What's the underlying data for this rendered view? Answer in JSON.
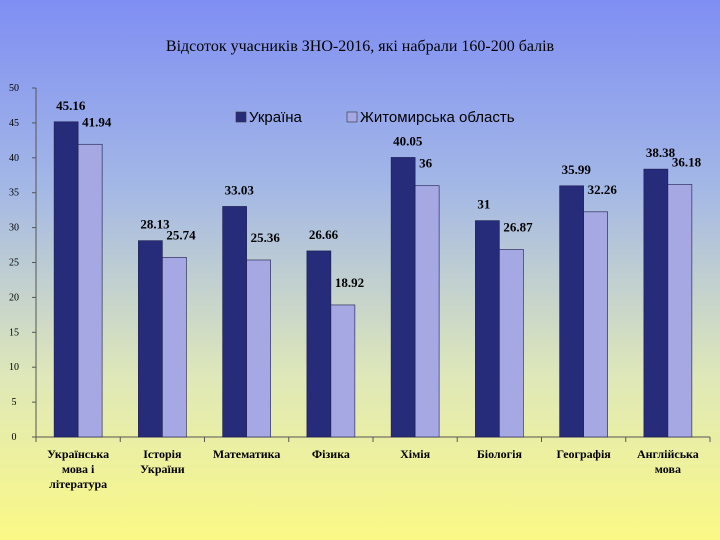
{
  "chart_data": {
    "type": "bar",
    "title": "Відсоток учасників ЗНО-2016, які набрали 160-200 балів",
    "categories": [
      [
        "Українська",
        "мова і",
        "література"
      ],
      [
        "Історія",
        "України"
      ],
      [
        "Математика"
      ],
      [
        "Фізика"
      ],
      [
        "Хімія"
      ],
      [
        "Біологія"
      ],
      [
        "Географія"
      ],
      [
        "Англійська",
        "мова"
      ]
    ],
    "series": [
      {
        "name": "Україна",
        "color": "#272c7a",
        "values": [
          45.16,
          28.13,
          33.03,
          26.66,
          40.05,
          31,
          35.99,
          38.38
        ]
      },
      {
        "name": "Житомирська область",
        "color": "#a5a8e2",
        "values": [
          41.94,
          25.74,
          25.36,
          18.92,
          36,
          26.87,
          32.26,
          36.18
        ]
      }
    ],
    "ylim": [
      0,
      50
    ],
    "yticks": [
      0,
      5,
      10,
      15,
      20,
      25,
      30,
      35,
      40,
      45,
      50
    ],
    "grid": false,
    "legend_position": "top"
  }
}
